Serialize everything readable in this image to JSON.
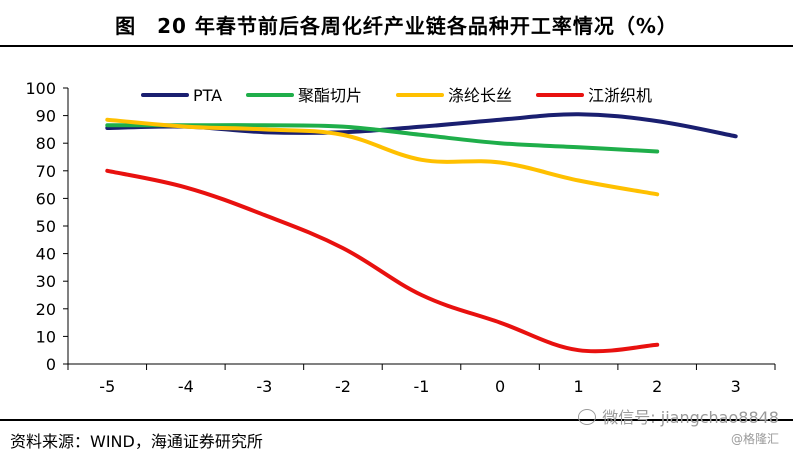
{
  "chart_data": {
    "type": "line",
    "title": "图　20 年春节前后各周化纤产业链各品种开工率情况（%）",
    "x": [
      -5,
      -4,
      -3,
      -2,
      -1,
      0,
      1,
      2,
      3
    ],
    "xlabels": [
      "-5",
      "-4",
      "-3",
      "-2",
      "-1",
      "0",
      "1",
      "2",
      "3"
    ],
    "ylim": [
      0,
      100
    ],
    "yticks": [
      0,
      10,
      20,
      30,
      40,
      50,
      60,
      70,
      80,
      90,
      100
    ],
    "legend_position": "top",
    "grid": false,
    "series": [
      {
        "name": "PTA",
        "color": "#1a1f70",
        "x": [
          -5,
          -4,
          -3,
          -2,
          -1,
          0,
          1,
          2,
          3
        ],
        "values": [
          85.5,
          86,
          84,
          84,
          86,
          88.5,
          90.5,
          88,
          82.5
        ]
      },
      {
        "name": "聚酯切片",
        "color": "#1fae4a",
        "x": [
          -5,
          -4,
          -3,
          -2,
          -1,
          0,
          1,
          2
        ],
        "values": [
          86.5,
          86.5,
          86.5,
          86,
          83,
          80,
          78.5,
          77
        ]
      },
      {
        "name": "涤纶长丝",
        "color": "#ffc000",
        "x": [
          -5,
          -4,
          -3,
          -2,
          -1,
          0,
          1,
          2
        ],
        "values": [
          88.5,
          86,
          85,
          83,
          74,
          73,
          66.5,
          61.5
        ]
      },
      {
        "name": "江浙织机",
        "color": "#e8110f",
        "x": [
          -5,
          -4,
          -3,
          -2,
          -1,
          0,
          1,
          2
        ],
        "values": [
          70,
          64,
          54,
          42,
          25,
          15,
          5,
          7
        ]
      }
    ]
  },
  "footer": {
    "source": "资料来源：WIND，海通证券研究所",
    "watermark": "微信号: jiangchao8848",
    "watermark_brand": "@格隆汇"
  }
}
